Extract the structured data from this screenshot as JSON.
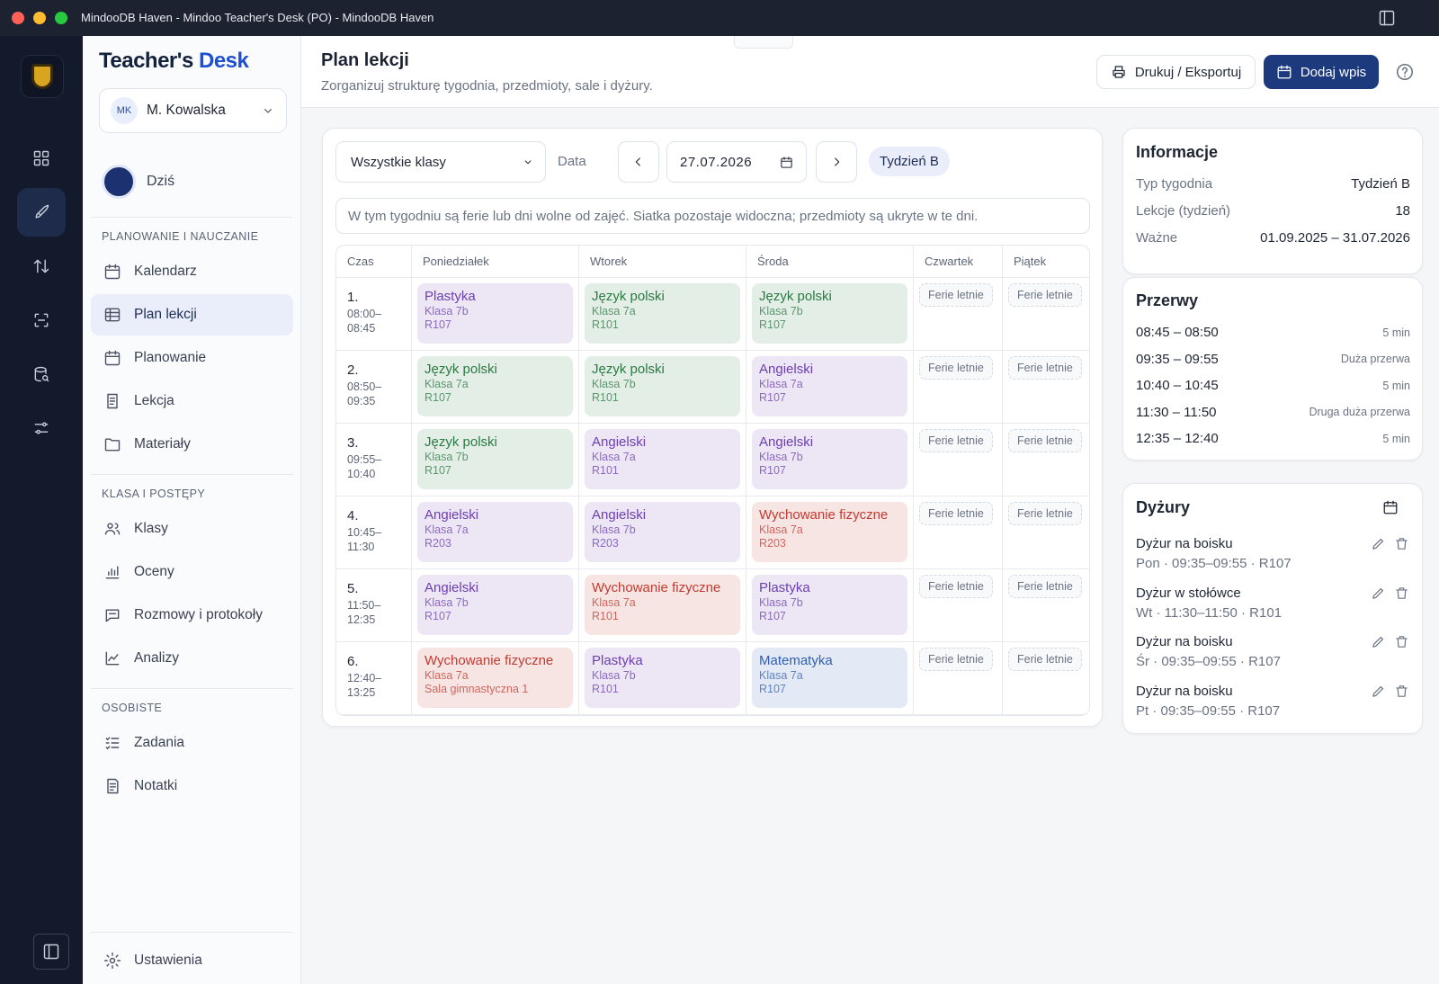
{
  "window": {
    "title": "MindooDB Haven - Mindoo Teacher's Desk (PO) - MindooDB Haven"
  },
  "sidebar": {
    "brand": [
      "Teacher's",
      "Desk"
    ],
    "user": {
      "initials": "MK",
      "name": "M. Kowalska"
    },
    "today": "Dziś",
    "sections": [
      {
        "title": "PLANOWANIE I NAUCZANIE",
        "items": [
          {
            "label": "Kalendarz"
          },
          {
            "label": "Plan lekcji",
            "active": true
          },
          {
            "label": "Planowanie"
          },
          {
            "label": "Lekcja"
          },
          {
            "label": "Materiały"
          }
        ]
      },
      {
        "title": "KLASA I POSTĘPY",
        "items": [
          {
            "label": "Klasy"
          },
          {
            "label": "Oceny"
          },
          {
            "label": "Rozmowy i protokoły"
          },
          {
            "label": "Analizy"
          }
        ]
      },
      {
        "title": "OSOBISTE",
        "items": [
          {
            "label": "Zadania"
          },
          {
            "label": "Notatki"
          }
        ]
      }
    ],
    "settings": "Ustawienia"
  },
  "header": {
    "title": "Plan lekcji",
    "subtitle": "Zorganizuj strukturę tygodnia, przedmioty, sale i dyżury.",
    "print_button": "Drukuj / Eksportuj",
    "add_button": "Dodaj wpis"
  },
  "toolbar": {
    "class_select": "Wszystkie klasy",
    "date_label": "Data",
    "date": "27.07.2026",
    "week": "Tydzień B"
  },
  "notice": "W tym tygodniu są ferie lub dni wolne od zajęć. Siatka pozostaje widoczna; przedmioty są ukryte w te dni.",
  "timetable": {
    "columns": [
      "Czas",
      "Poniedziałek",
      "Wtorek",
      "Środa",
      "Czwartek",
      "Piątek"
    ],
    "holiday_label": "Ferie letnie",
    "rows": [
      {
        "number": "1.",
        "time": "08:00–08:45",
        "lessons": [
          {
            "subject": "Plastyka",
            "class": "Klasa 7b",
            "room": "R107",
            "color": "#6d3fb0"
          },
          {
            "subject": "Język polski",
            "class": "Klasa 7a",
            "room": "R101",
            "color": "#2b7a43"
          },
          {
            "subject": "Język polski",
            "class": "Klasa 7b",
            "room": "R107",
            "color": "#2b7a43"
          }
        ]
      },
      {
        "number": "2.",
        "time": "08:50–09:35",
        "lessons": [
          {
            "subject": "Język polski",
            "class": "Klasa 7a",
            "room": "R107",
            "color": "#2b7a43"
          },
          {
            "subject": "Język polski",
            "class": "Klasa 7b",
            "room": "R101",
            "color": "#2b7a43"
          },
          {
            "subject": "Angielski",
            "class": "Klasa 7a",
            "room": "R107",
            "color": "#6d3fb0"
          }
        ]
      },
      {
        "number": "3.",
        "time": "09:55–10:40",
        "lessons": [
          {
            "subject": "Język polski",
            "class": "Klasa 7b",
            "room": "R107",
            "color": "#2b7a43"
          },
          {
            "subject": "Angielski",
            "class": "Klasa 7a",
            "room": "R101",
            "color": "#6d3fb0"
          },
          {
            "subject": "Angielski",
            "class": "Klasa 7b",
            "room": "R107",
            "color": "#6d3fb0"
          }
        ]
      },
      {
        "number": "4.",
        "time": "10:45–11:30",
        "lessons": [
          {
            "subject": "Angielski",
            "class": "Klasa 7a",
            "room": "R203",
            "color": "#6d3fb0"
          },
          {
            "subject": "Angielski",
            "class": "Klasa 7b",
            "room": "R203",
            "color": "#6d3fb0"
          },
          {
            "subject": "Wychowanie fizyczne",
            "class": "Klasa 7a",
            "room": "R203",
            "color": "#c23a2f"
          }
        ]
      },
      {
        "number": "5.",
        "time": "11:50–12:35",
        "lessons": [
          {
            "subject": "Angielski",
            "class": "Klasa 7b",
            "room": "R107",
            "color": "#6d3fb0"
          },
          {
            "subject": "Wychowanie fizyczne",
            "class": "Klasa 7a",
            "room": "R101",
            "color": "#c23a2f"
          },
          {
            "subject": "Plastyka",
            "class": "Klasa 7b",
            "room": "R107",
            "color": "#6d3fb0"
          }
        ]
      },
      {
        "number": "6.",
        "time": "12:40–13:25",
        "lessons": [
          {
            "subject": "Wychowanie fizyczne",
            "class": "Klasa 7a",
            "room": "Sala gimnastyczna 1",
            "color": "#c23a2f"
          },
          {
            "subject": "Plastyka",
            "class": "Klasa 7b",
            "room": "R101",
            "color": "#6d3fb0"
          },
          {
            "subject": "Matematyka",
            "class": "Klasa 7a",
            "room": "R107",
            "color": "#2f5fb3"
          }
        ]
      }
    ]
  },
  "info": {
    "title": "Informacje",
    "rows": [
      [
        "Typ tygodnia",
        "Tydzień B"
      ],
      [
        "Lekcje (tydzień)",
        "18"
      ],
      [
        "Ważne",
        "01.09.2025 – 31.07.2026"
      ]
    ]
  },
  "breaks": {
    "title": "Przerwy",
    "items": [
      {
        "time": "08:45 – 08:50",
        "note": "5 min"
      },
      {
        "time": "09:35 – 09:55",
        "note": "Duża przerwa"
      },
      {
        "time": "10:40 – 10:45",
        "note": "5 min"
      },
      {
        "time": "11:30 – 11:50",
        "note": "Druga duża przerwa"
      },
      {
        "time": "12:35 – 12:40",
        "note": "5 min"
      }
    ]
  },
  "duties": {
    "title": "Dyżury",
    "items": [
      {
        "title": "Dyżur na boisku",
        "detail": "Pon · 09:35–09:55 · R107"
      },
      {
        "title": "Dyżur w stołówce",
        "detail": "Wt · 11:30–11:50 · R101"
      },
      {
        "title": "Dyżur na boisku",
        "detail": "Śr · 09:35–09:55 · R107"
      },
      {
        "title": "Dyżur na boisku",
        "detail": "Pt · 09:35–09:55 · R107"
      }
    ]
  }
}
